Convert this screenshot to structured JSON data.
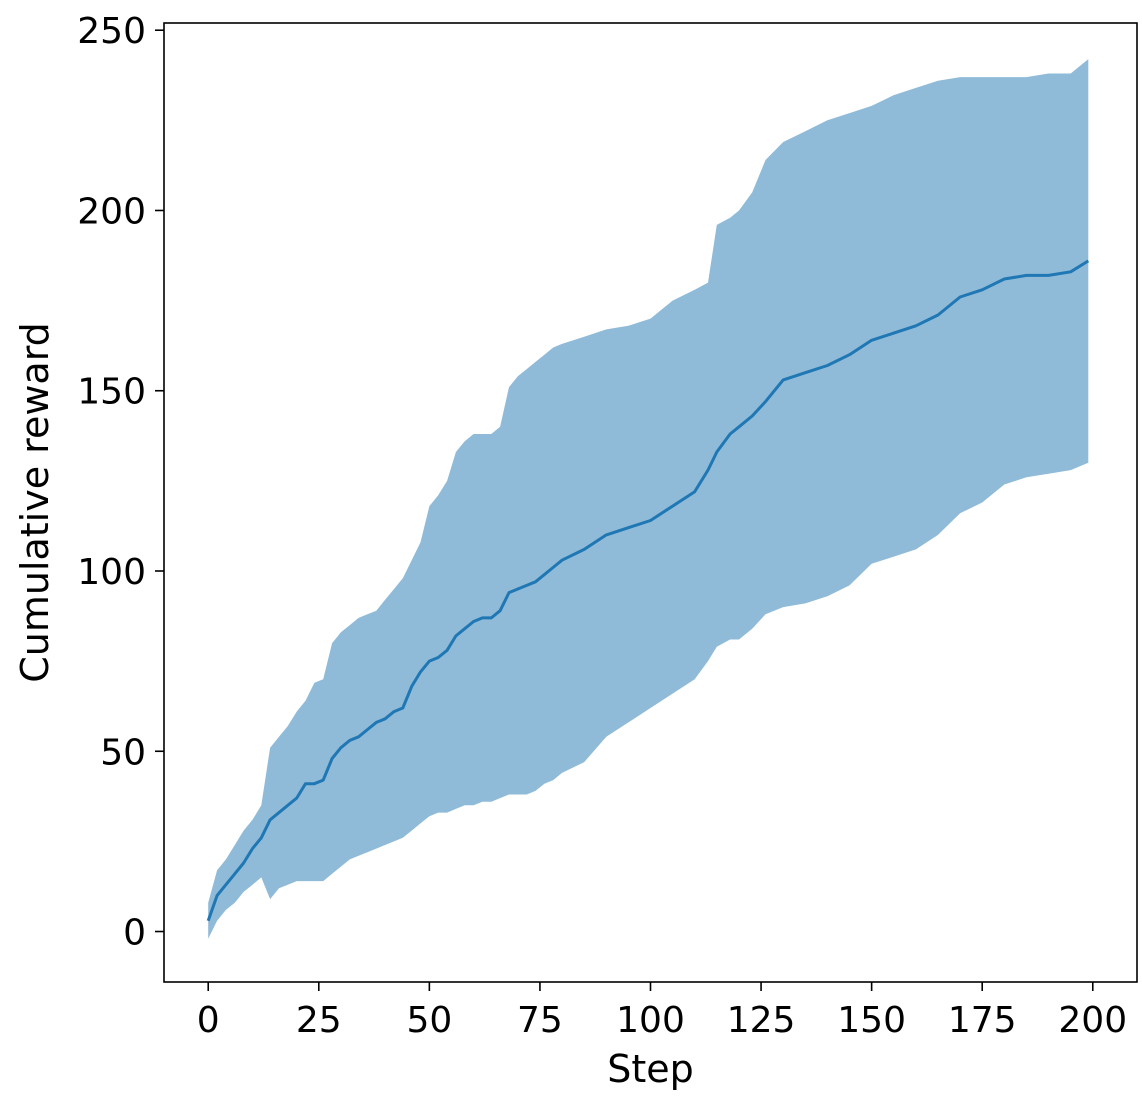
{
  "chart_data": {
    "type": "line",
    "title": "",
    "xlabel": "Step",
    "ylabel": "Cumulative reward",
    "xlim": [
      -10,
      210
    ],
    "ylim": [
      -14,
      252
    ],
    "grid": false,
    "legend": "none",
    "x_ticks": [
      0,
      25,
      50,
      75,
      100,
      125,
      150,
      175,
      200
    ],
    "y_ticks": [
      0,
      50,
      100,
      150,
      200,
      250
    ],
    "colors": {
      "line": "#1f77b4",
      "band": "#1f77b4",
      "band_opacity": 0.5
    },
    "series": [
      {
        "x": [
          0,
          2,
          4,
          6,
          8,
          10,
          12,
          14,
          16,
          18,
          20,
          22,
          24,
          26,
          28,
          30,
          32,
          34,
          36,
          38,
          40,
          42,
          44,
          46,
          48,
          50,
          52,
          54,
          56,
          58,
          60,
          62,
          64,
          66,
          68,
          70,
          72,
          74,
          76,
          78,
          80,
          85,
          90,
          95,
          100,
          105,
          110,
          113,
          115,
          118,
          120,
          123,
          126,
          130,
          135,
          140,
          145,
          150,
          155,
          160,
          165,
          170,
          175,
          180,
          185,
          190,
          195,
          199
        ],
        "mean": [
          3,
          10,
          13,
          16,
          19,
          23,
          26,
          31,
          33,
          35,
          37,
          41,
          41,
          42,
          48,
          51,
          53,
          54,
          56,
          58,
          59,
          61,
          62,
          68,
          72,
          75,
          76,
          78,
          82,
          84,
          86,
          87,
          87,
          89,
          94,
          95,
          96,
          97,
          99,
          101,
          103,
          106,
          110,
          112,
          114,
          118,
          122,
          128,
          133,
          138,
          140,
          143,
          147,
          153,
          155,
          157,
          160,
          164,
          166,
          168,
          171,
          176,
          178,
          181,
          182,
          182,
          183,
          186
        ],
        "upper": [
          8,
          17,
          20,
          24,
          28,
          31,
          35,
          51,
          54,
          57,
          61,
          64,
          69,
          70,
          80,
          83,
          85,
          87,
          88,
          89,
          92,
          95,
          98,
          103,
          108,
          118,
          121,
          125,
          133,
          136,
          138,
          138,
          138,
          140,
          151,
          154,
          156,
          158,
          160,
          162,
          163,
          165,
          167,
          168,
          170,
          175,
          178,
          180,
          196,
          198,
          200,
          205,
          214,
          219,
          222,
          225,
          227,
          229,
          232,
          234,
          236,
          237,
          237,
          237,
          237,
          238,
          238,
          242
        ],
        "lower": [
          -2,
          3,
          6,
          8,
          11,
          13,
          15,
          9,
          12,
          13,
          14,
          14,
          14,
          14,
          16,
          18,
          20,
          21,
          22,
          23,
          24,
          25,
          26,
          28,
          30,
          32,
          33,
          33,
          34,
          35,
          35,
          36,
          36,
          37,
          38,
          38,
          38,
          39,
          41,
          42,
          44,
          47,
          54,
          58,
          62,
          66,
          70,
          75,
          79,
          81,
          81,
          84,
          88,
          90,
          91,
          93,
          96,
          102,
          104,
          106,
          110,
          116,
          119,
          124,
          126,
          127,
          128,
          130
        ]
      }
    ]
  }
}
